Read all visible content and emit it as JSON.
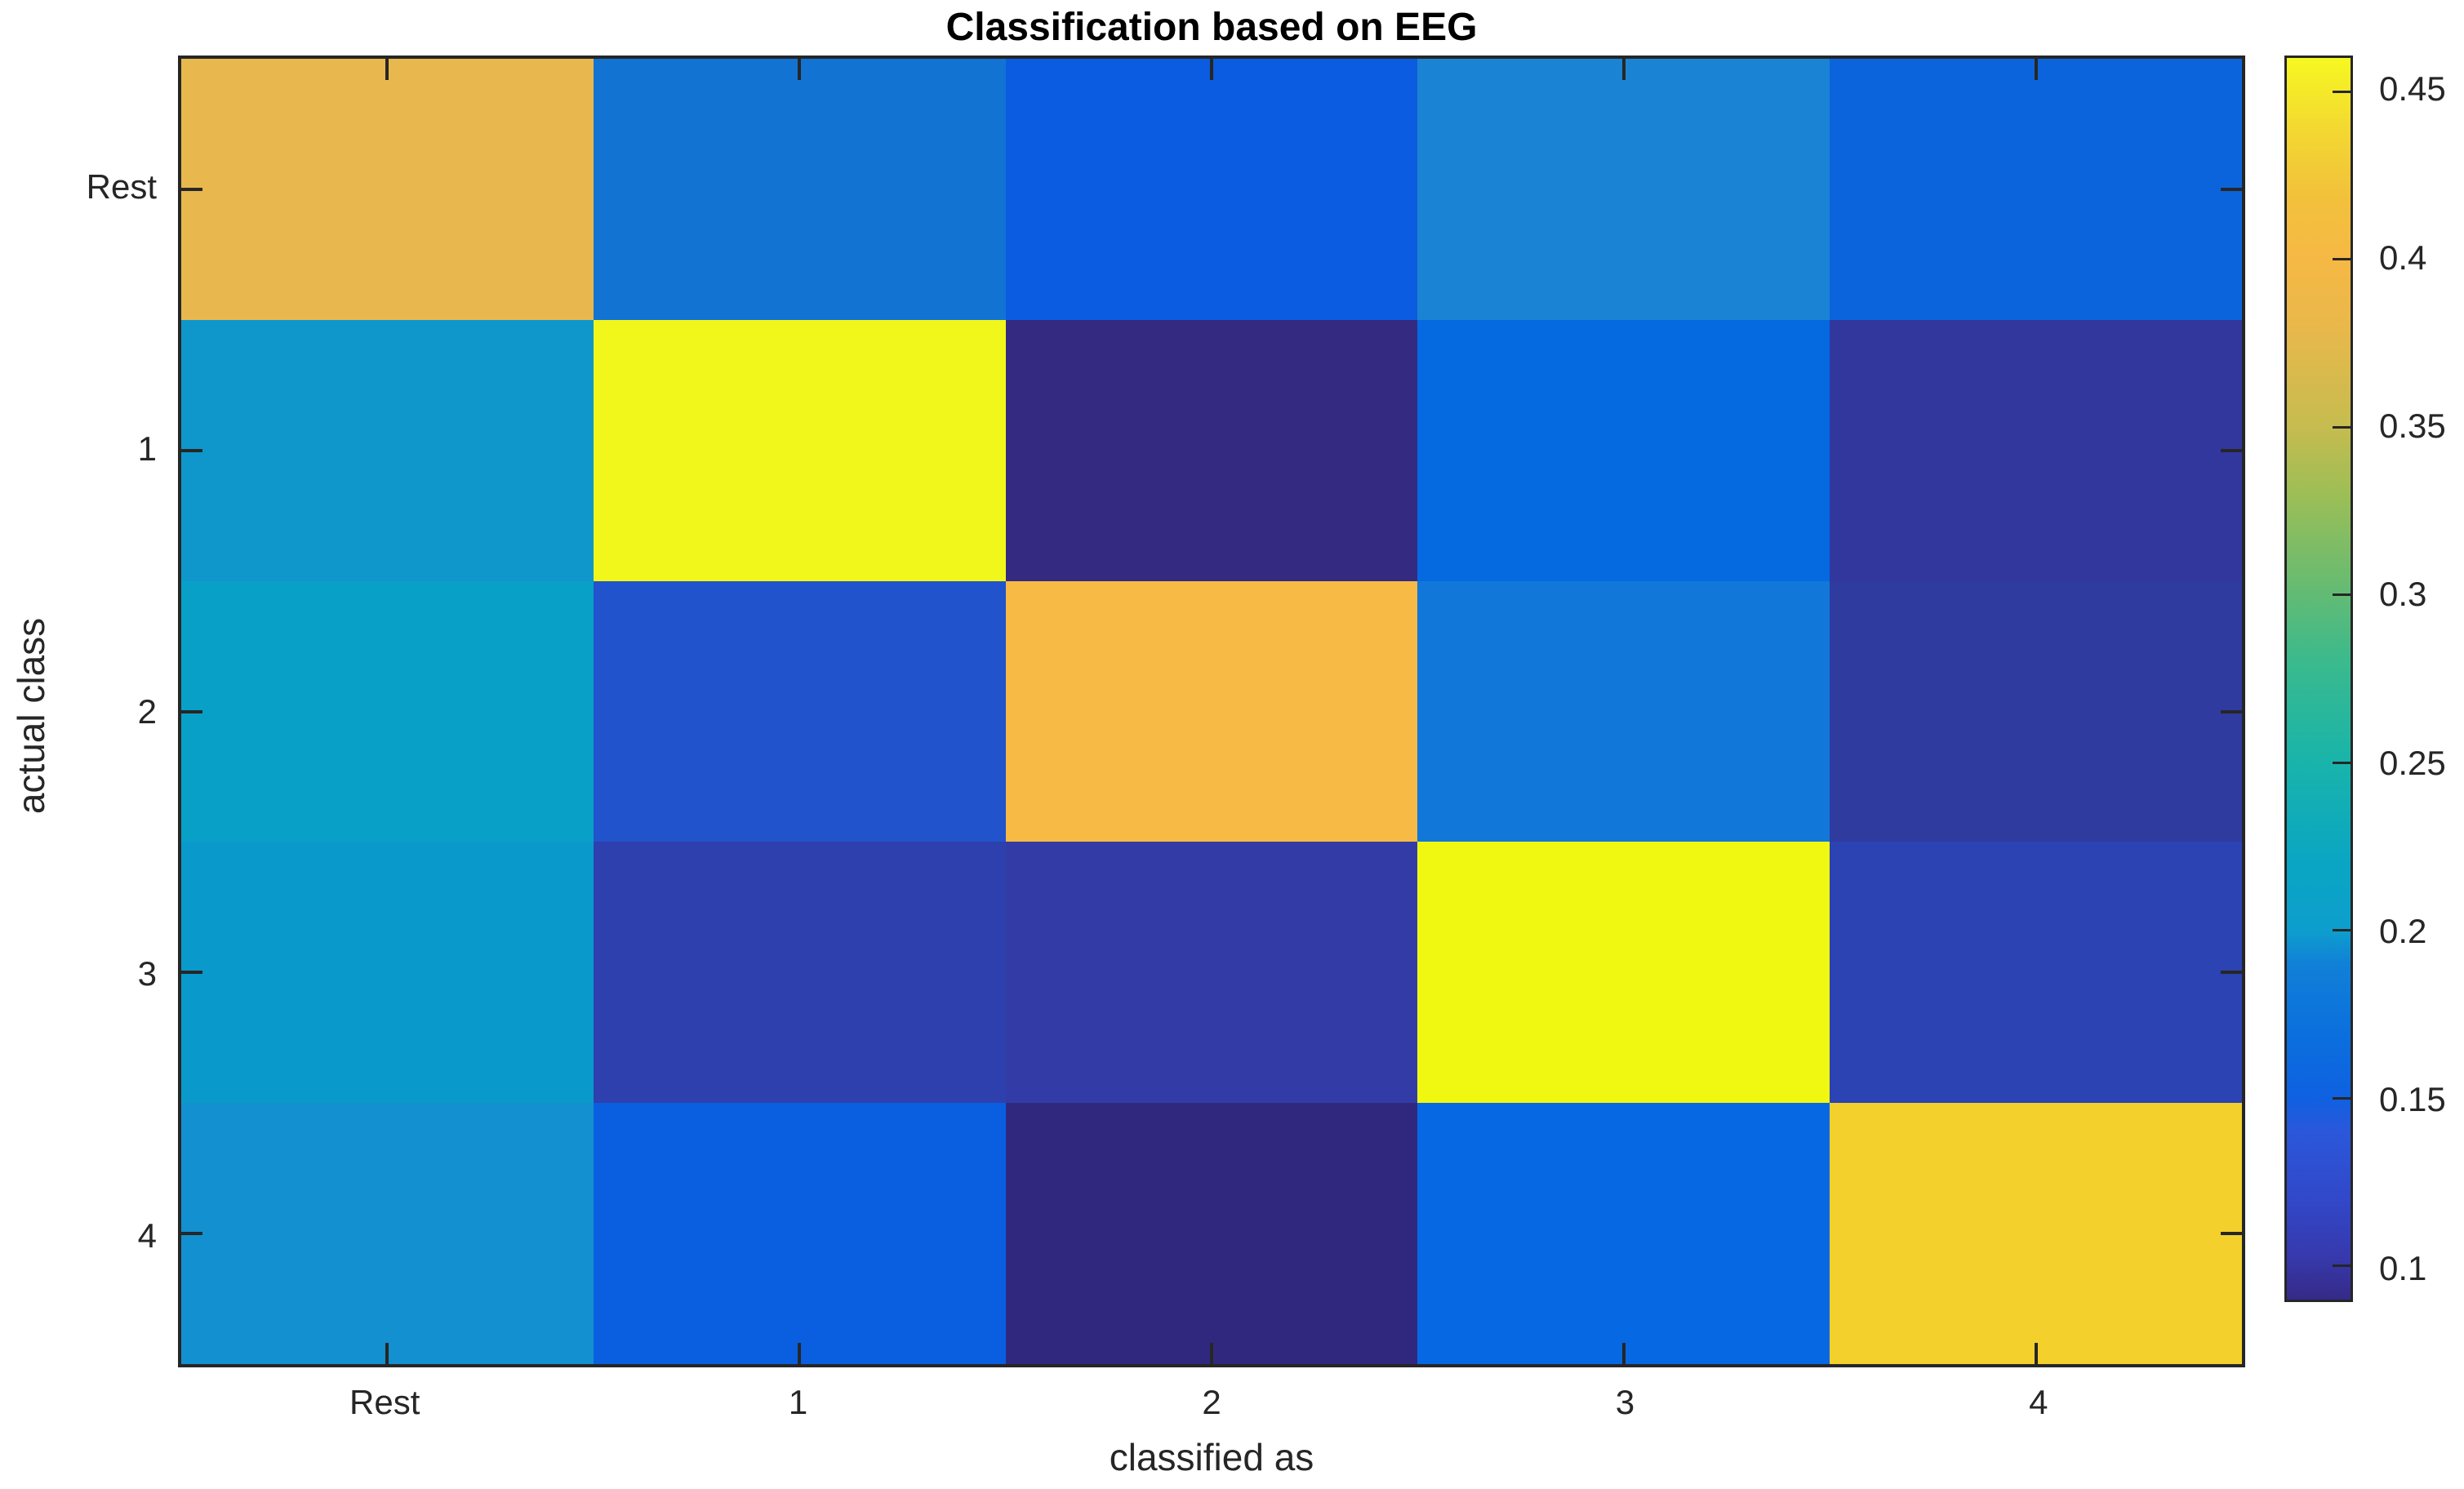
{
  "chart_data": {
    "type": "heatmap",
    "title": "Classification based on EEG",
    "xlabel": "classified as",
    "ylabel": "actual class",
    "x_categories": [
      "Rest",
      "1",
      "2",
      "3",
      "4"
    ],
    "y_categories": [
      "Rest",
      "1",
      "2",
      "3",
      "4"
    ],
    "values": [
      [
        0.39,
        0.17,
        0.15,
        0.18,
        0.155
      ],
      [
        0.2,
        0.455,
        0.09,
        0.157,
        0.105
      ],
      [
        0.205,
        0.135,
        0.405,
        0.17,
        0.105
      ],
      [
        0.2,
        0.11,
        0.108,
        0.458,
        0.115
      ],
      [
        0.19,
        0.15,
        0.09,
        0.155,
        0.43
      ]
    ],
    "cell_colors": [
      [
        "#e8b84e",
        "#1273d3",
        "#0b5ce0",
        "#1b83d4",
        "#0c64dc"
      ],
      [
        "#0f97cc",
        "#f1f61b",
        "#342a82",
        "#0569e0",
        "#32379e"
      ],
      [
        "#09a0c8",
        "#2154cc",
        "#f7ba44",
        "#1178d9",
        "#2f3b9e"
      ],
      [
        "#0a99cb",
        "#2e3fae",
        "#333ca6",
        "#f0f711",
        "#2b43b3"
      ],
      [
        "#1390cf",
        "#095fe0",
        "#30287f",
        "#0668e2",
        "#f3d02b"
      ]
    ],
    "grid": false,
    "legend_position": "colorbar-right",
    "colorbar": {
      "vmin": 0.09,
      "vmax": 0.46,
      "tick_values": [
        0.45,
        0.4,
        0.35,
        0.3,
        0.25,
        0.2,
        0.15,
        0.1
      ],
      "gradient_stops": [
        [
          0.0,
          "#352a87"
        ],
        [
          0.035,
          "#3739ad"
        ],
        [
          0.081,
          "#3148c9"
        ],
        [
          0.135,
          "#2b57da"
        ],
        [
          0.162,
          "#0f61e1"
        ],
        [
          0.216,
          "#0b70dd"
        ],
        [
          0.27,
          "#1180d7"
        ],
        [
          0.297,
          "#0d9ecd"
        ],
        [
          0.351,
          "#0aa5c3"
        ],
        [
          0.432,
          "#18b4ab"
        ],
        [
          0.514,
          "#3bba8d"
        ],
        [
          0.568,
          "#62bb74"
        ],
        [
          0.649,
          "#9dbe56"
        ],
        [
          0.703,
          "#c6bc4f"
        ],
        [
          0.784,
          "#e9b84b"
        ],
        [
          0.838,
          "#f6b844"
        ],
        [
          0.892,
          "#f2c23b"
        ],
        [
          0.946,
          "#f3da30"
        ],
        [
          1.0,
          "#f6f821"
        ]
      ]
    }
  },
  "colors": {
    "axis": "#262626",
    "title_text": "#000000",
    "background": "#ffffff"
  }
}
